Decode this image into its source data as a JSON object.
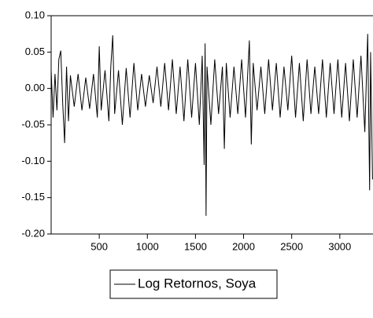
{
  "chart_data": {
    "type": "line",
    "x": [
      0,
      20,
      40,
      60,
      80,
      100,
      120,
      140,
      160,
      180,
      200,
      240,
      280,
      320,
      360,
      400,
      440,
      480,
      500,
      520,
      560,
      600,
      620,
      640,
      660,
      700,
      740,
      780,
      820,
      860,
      900,
      940,
      980,
      1020,
      1060,
      1100,
      1140,
      1180,
      1220,
      1260,
      1300,
      1340,
      1380,
      1420,
      1460,
      1500,
      1540,
      1570,
      1590,
      1600,
      1610,
      1620,
      1660,
      1700,
      1740,
      1780,
      1800,
      1820,
      1860,
      1900,
      1940,
      1980,
      2020,
      2060,
      2080,
      2100,
      2140,
      2180,
      2220,
      2260,
      2300,
      2340,
      2380,
      2420,
      2460,
      2500,
      2540,
      2580,
      2620,
      2660,
      2700,
      2740,
      2780,
      2820,
      2860,
      2900,
      2940,
      2980,
      3020,
      3060,
      3100,
      3140,
      3180,
      3220,
      3260,
      3290,
      3310,
      3320,
      3340
    ],
    "series": [
      {
        "name": "Log Retornos, Soya",
        "color": "#000000",
        "values": [
          0.025,
          -0.04,
          0.02,
          -0.03,
          0.04,
          0.052,
          -0.02,
          -0.075,
          0.03,
          -0.045,
          0.018,
          -0.025,
          0.02,
          -0.03,
          0.015,
          -0.028,
          0.02,
          -0.04,
          0.058,
          -0.03,
          0.025,
          -0.045,
          0.03,
          0.073,
          -0.035,
          0.025,
          -0.05,
          0.028,
          -0.04,
          0.035,
          -0.03,
          0.02,
          -0.025,
          0.018,
          -0.02,
          0.03,
          -0.025,
          0.035,
          -0.03,
          0.04,
          -0.035,
          0.03,
          -0.045,
          0.04,
          -0.04,
          0.035,
          -0.05,
          0.045,
          -0.105,
          0.062,
          -0.175,
          0.03,
          -0.05,
          0.04,
          -0.035,
          0.03,
          -0.083,
          0.035,
          -0.04,
          0.03,
          -0.035,
          0.04,
          -0.04,
          0.066,
          -0.077,
          0.035,
          -0.03,
          0.03,
          -0.035,
          0.04,
          -0.03,
          0.035,
          -0.04,
          0.03,
          -0.03,
          0.045,
          -0.04,
          0.035,
          -0.045,
          0.04,
          -0.035,
          0.03,
          -0.035,
          0.04,
          -0.04,
          0.035,
          -0.035,
          0.04,
          -0.04,
          0.035,
          -0.045,
          0.04,
          -0.04,
          0.045,
          -0.06,
          0.075,
          -0.14,
          0.05,
          -0.125
        ]
      }
    ],
    "xlim": [
      0,
      3345
    ],
    "xticks": [
      500,
      1000,
      1500,
      2000,
      2500,
      3000
    ],
    "ylim": [
      -0.2,
      0.1
    ],
    "yticks": [
      {
        "value": 0.1,
        "label": "0.10"
      },
      {
        "value": 0.05,
        "label": "0.05"
      },
      {
        "value": 0,
        "label": "0.00"
      },
      {
        "value": -0.05,
        "label": "-0.05"
      },
      {
        "value": -0.1,
        "label": "-0.10"
      },
      {
        "value": -0.15,
        "label": "-0.15"
      },
      {
        "value": -0.2,
        "label": "-0.20"
      }
    ],
    "grid": false
  }
}
